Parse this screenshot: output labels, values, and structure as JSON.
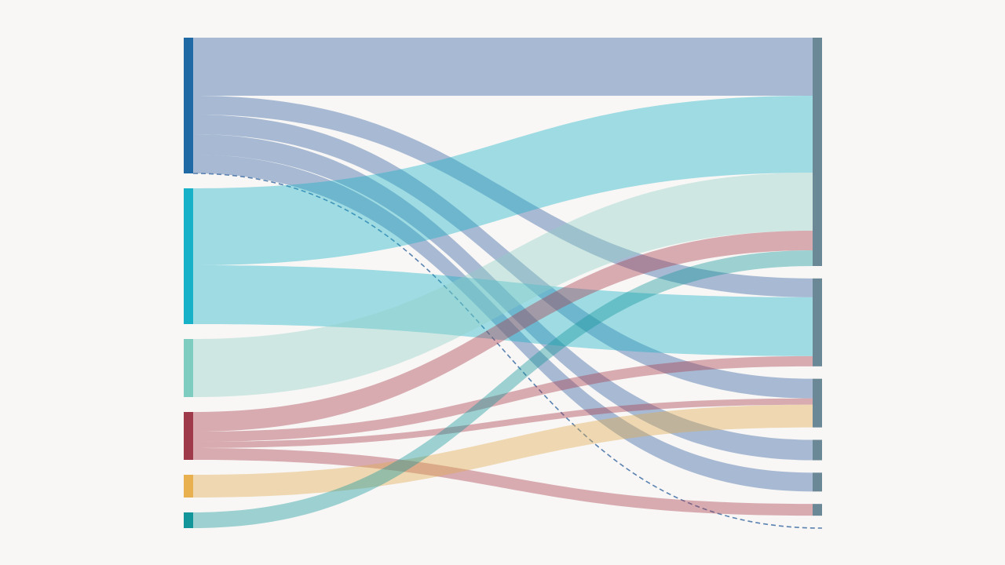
{
  "chart_data": {
    "type": "sankey",
    "nodes": [
      {
        "color": "#1f6aa5"
      },
      {
        "color": "#17b2c8"
      },
      {
        "color": "#7fcdc0"
      },
      {
        "color": "#9e3a4a"
      },
      {
        "color": "#e9b04f"
      },
      {
        "color": "#12969a"
      },
      {
        "color": "#6b8896"
      },
      {
        "color": "#6b8896"
      },
      {
        "color": "#6b8896"
      },
      {
        "color": "#6b8896"
      },
      {
        "color": "#6b8896"
      },
      {
        "color": "#6b8896"
      },
      {
        "color": "#6b8896"
      }
    ],
    "links": [
      {
        "source": 0,
        "target": 6,
        "value": 74,
        "color": "#2f5fa0"
      },
      {
        "source": 0,
        "target": 7,
        "value": 24,
        "color": "#2f5fa0"
      },
      {
        "source": 0,
        "target": 8,
        "value": 25,
        "color": "#2f5fa0"
      },
      {
        "source": 0,
        "target": 9,
        "value": 26,
        "color": "#2f5fa0"
      },
      {
        "source": 0,
        "target": 10,
        "value": 24,
        "color": "#2f5fa0"
      },
      {
        "source": 0,
        "target": 12,
        "value": 0,
        "color": "#5a82b0",
        "style": "dashed"
      },
      {
        "source": 1,
        "target": 6,
        "value": 98,
        "color": "#17b2c8"
      },
      {
        "source": 1,
        "target": 7,
        "value": 75,
        "color": "#17b2c8"
      },
      {
        "source": 2,
        "target": 6,
        "value": 74,
        "color": "#8fd0c6"
      },
      {
        "source": 3,
        "target": 6,
        "value": 25,
        "color": "#a83a4c"
      },
      {
        "source": 3,
        "target": 7,
        "value": 13,
        "color": "#a83a4c"
      },
      {
        "source": 3,
        "target": 8,
        "value": 8,
        "color": "#a83a4c"
      },
      {
        "source": 3,
        "target": 11,
        "value": 15,
        "color": "#a83a4c"
      },
      {
        "source": 4,
        "target": 8,
        "value": 29,
        "color": "#e0a94a"
      },
      {
        "source": 5,
        "target": 6,
        "value": 20,
        "color": "#12969a"
      }
    ]
  }
}
